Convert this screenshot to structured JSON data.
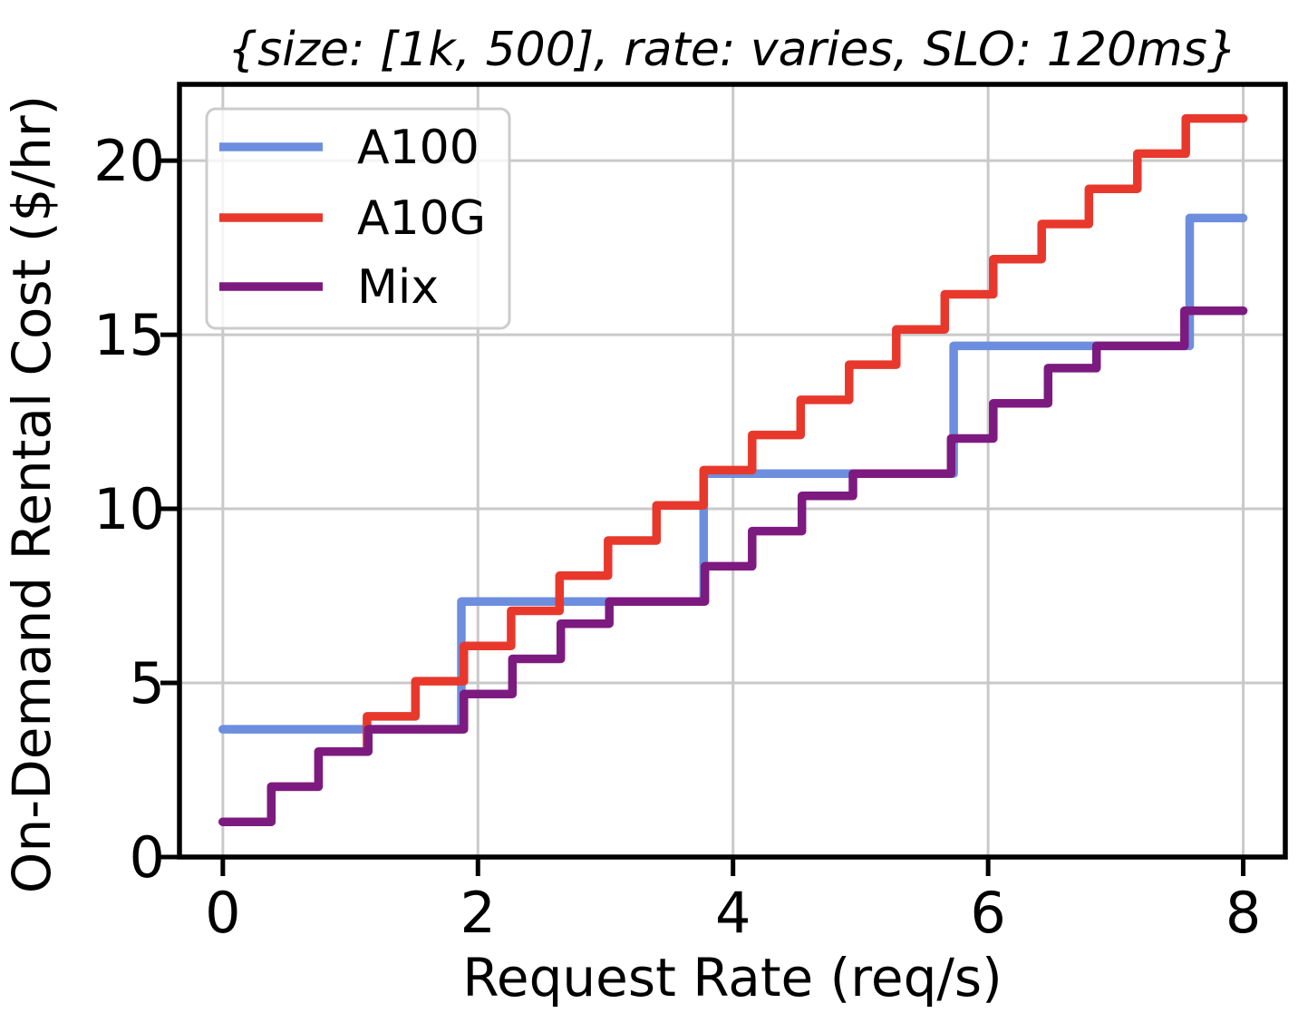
{
  "chart_data": {
    "type": "line",
    "subtype": "step-post",
    "title": "{size: [1k, 500], rate: varies, SLO: 120ms}",
    "xlabel": "Request Rate (req/s)",
    "ylabel": "On-Demand Rental Cost ($/hr)",
    "xlim": [
      -0.34,
      8.33
    ],
    "ylim": [
      0,
      22.19
    ],
    "x_ticks": [
      0,
      2,
      4,
      6,
      8
    ],
    "y_ticks": [
      0,
      5,
      10,
      15,
      20
    ],
    "x_end": 8.0,
    "grid": true,
    "grid_color": "#c9c9c9",
    "axis_color": "#000000",
    "legend_position": "upper-left",
    "series": [
      {
        "name": "A100",
        "color": "#6d8ede",
        "unit_cost_per_hr": 3.67,
        "steps": [
          [
            0,
            3.67
          ],
          [
            1.87,
            7.34
          ],
          [
            3.77,
            11.01
          ],
          [
            5.73,
            14.68
          ],
          [
            7.58,
            18.35
          ]
        ]
      },
      {
        "name": "A10G",
        "color": "#e8382c",
        "unit_cost_per_hr": 1.01,
        "steps": [
          [
            0,
            1.01
          ],
          [
            0.38,
            2.02
          ],
          [
            0.75,
            3.03
          ],
          [
            1.13,
            4.04
          ],
          [
            1.51,
            5.05
          ],
          [
            1.89,
            6.06
          ],
          [
            2.26,
            7.07
          ],
          [
            2.64,
            8.08
          ],
          [
            3.02,
            9.09
          ],
          [
            3.4,
            10.1
          ],
          [
            3.77,
            11.11
          ],
          [
            4.15,
            12.12
          ],
          [
            4.53,
            13.13
          ],
          [
            4.91,
            14.14
          ],
          [
            5.28,
            15.15
          ],
          [
            5.66,
            16.16
          ],
          [
            6.04,
            17.17
          ],
          [
            6.42,
            18.18
          ],
          [
            6.79,
            19.19
          ],
          [
            7.17,
            20.2
          ],
          [
            7.55,
            21.21
          ]
        ]
      },
      {
        "name": "Mix",
        "color": "#7d1a80",
        "steps": [
          [
            0,
            1.01
          ],
          [
            0.38,
            2.02
          ],
          [
            0.75,
            3.03
          ],
          [
            1.14,
            3.67
          ],
          [
            1.89,
            4.68
          ],
          [
            2.27,
            5.69
          ],
          [
            2.65,
            6.7
          ],
          [
            3.03,
            7.34
          ],
          [
            3.78,
            8.35
          ],
          [
            4.15,
            9.36
          ],
          [
            4.54,
            10.37
          ],
          [
            4.94,
            11.01
          ],
          [
            5.71,
            12.02
          ],
          [
            6.04,
            13.03
          ],
          [
            6.47,
            14.04
          ],
          [
            6.85,
            14.68
          ],
          [
            7.54,
            15.69
          ]
        ]
      }
    ]
  }
}
